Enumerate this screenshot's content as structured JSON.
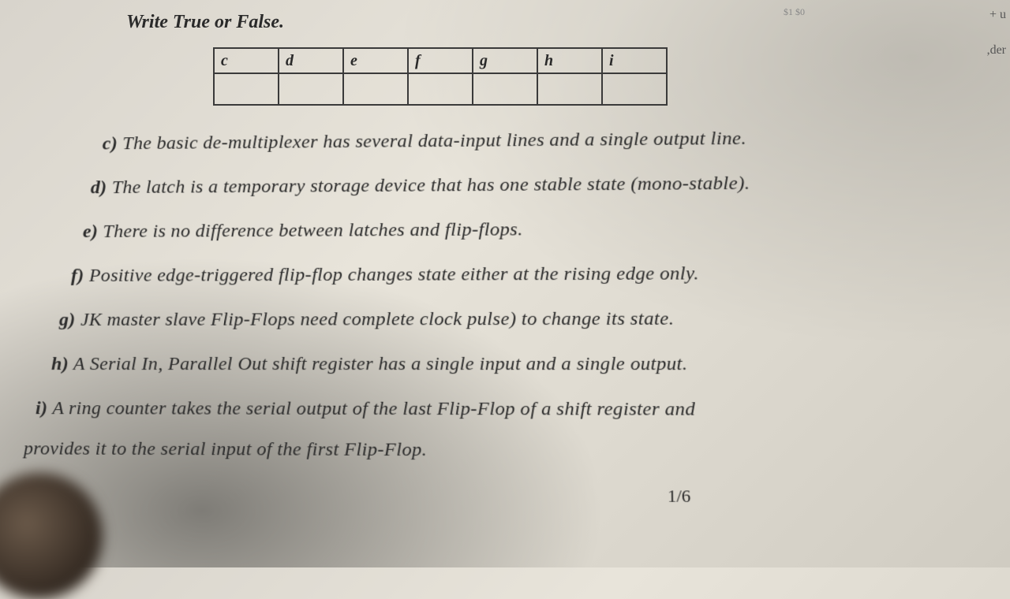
{
  "instruction": "Write True or False.",
  "table": {
    "headers": [
      "c",
      "d",
      "e",
      "f",
      "g",
      "h",
      "i"
    ]
  },
  "questions": {
    "c": {
      "label": "c)",
      "text": "The basic de-multiplexer has several data-input lines and a single output line."
    },
    "d": {
      "label": "d)",
      "text": "The latch is a temporary storage device that has one stable state (mono-stable)."
    },
    "e": {
      "label": "e)",
      "text": "There is no difference between latches and flip-flops."
    },
    "f": {
      "label": "f)",
      "text": "Positive edge-triggered flip-flop changes state either at the rising edge only."
    },
    "g": {
      "label": "g)",
      "text": "JK master slave Flip-Flops need complete clock pulse) to change its state."
    },
    "h": {
      "label": "h)",
      "text": "A Serial In, Parallel Out shift register has a single input and a single output."
    },
    "i": {
      "label": "i)",
      "text": "A ring counter takes the serial output of the last Flip-Flop of a shift register and"
    },
    "i_cont": "provides it to the serial input of the first Flip-Flop."
  },
  "page_number": "1/6",
  "edge_marks": {
    "mark1": "+ u",
    "mark2": ",der"
  },
  "small_mark": "$1 $0"
}
